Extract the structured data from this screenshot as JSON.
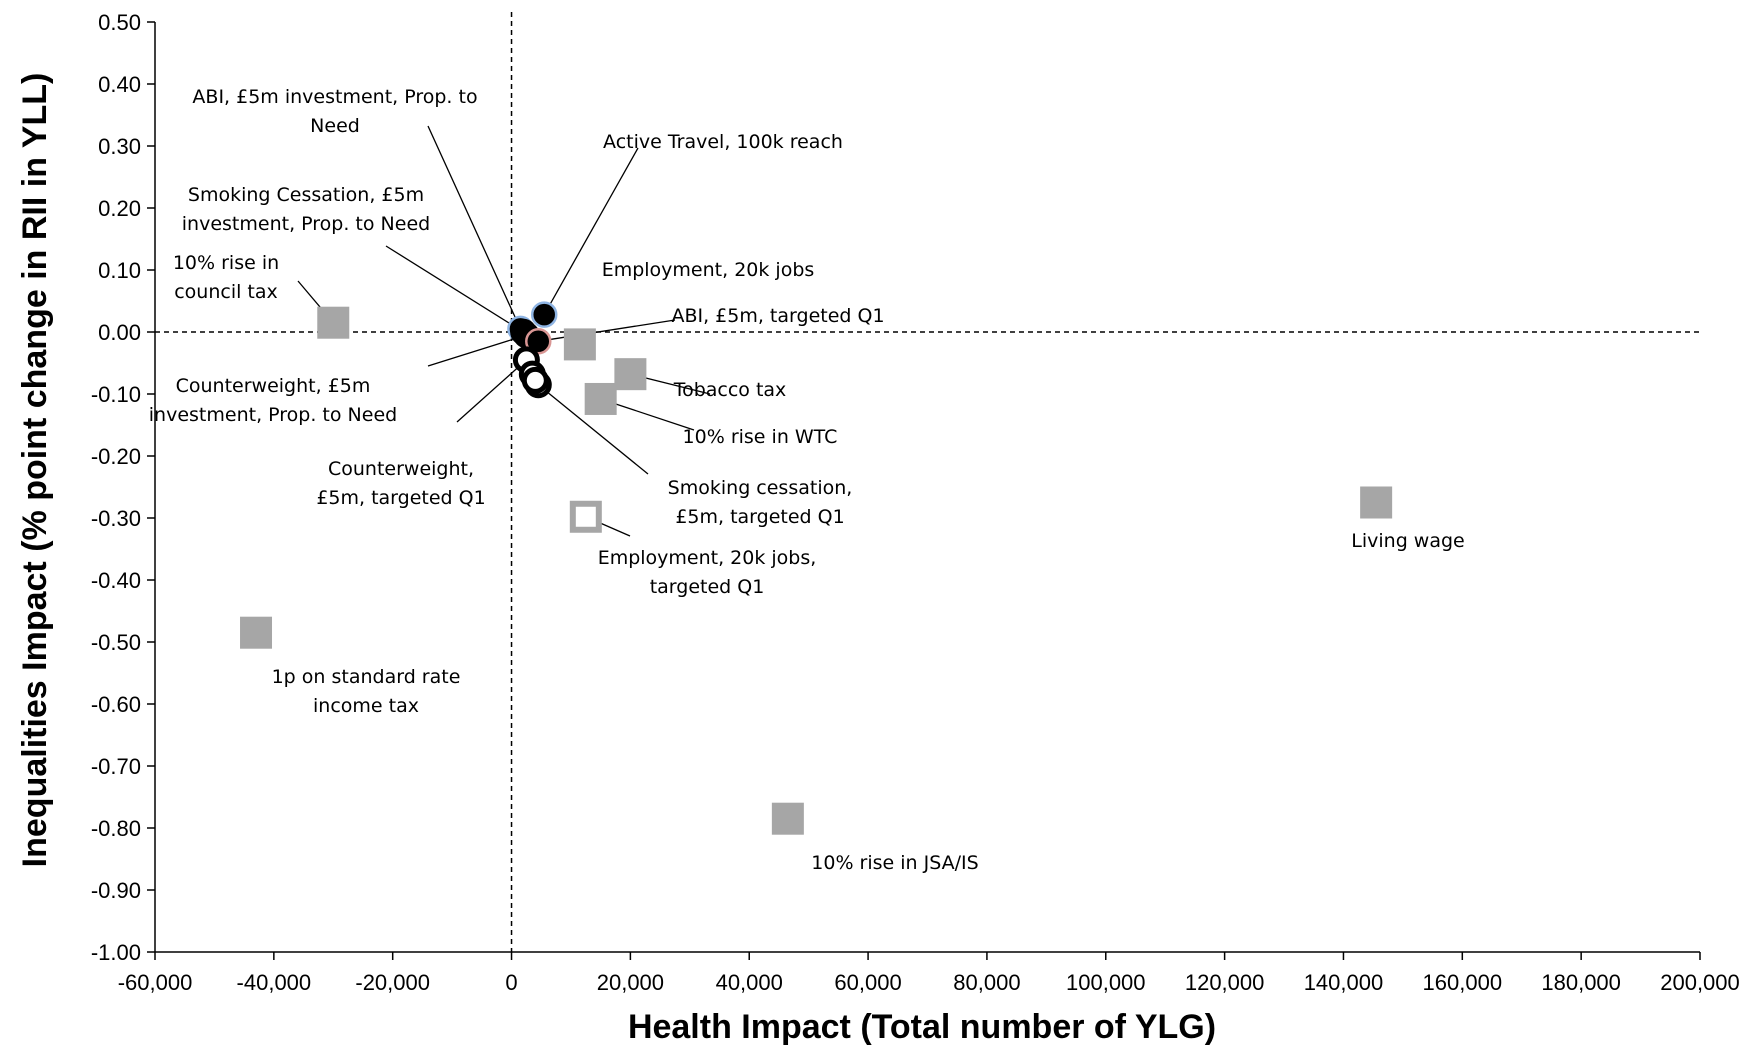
{
  "chart_data": {
    "type": "scatter",
    "title": "",
    "xlabel": "Health Impact (Total number of YLG)",
    "ylabel": "Inequalities Impact (% point change in RII in YLL)",
    "xlim": [
      -60000,
      200000
    ],
    "ylim": [
      -1.0,
      0.5
    ],
    "x_ticks": [
      -60000,
      -40000,
      -20000,
      0,
      20000,
      40000,
      60000,
      80000,
      100000,
      120000,
      140000,
      160000,
      180000,
      200000
    ],
    "x_tick_labels": [
      "-60,000",
      "-40,000",
      "-20,000",
      "0",
      "20,000",
      "40,000",
      "60,000",
      "80,000",
      "100,000",
      "120,000",
      "140,000",
      "160,000",
      "180,000",
      "200,000"
    ],
    "y_ticks": [
      0.5,
      0.4,
      0.3,
      0.2,
      0.1,
      0.0,
      -0.1,
      -0.2,
      -0.3,
      -0.4,
      -0.5,
      -0.6,
      -0.7,
      -0.8,
      -0.9,
      -1.0
    ],
    "y_tick_labels": [
      "0.50",
      "0.40",
      "0.30",
      "0.20",
      "0.10",
      "0.00",
      "-0.10",
      "-0.20",
      "-0.30",
      "-0.40",
      "-0.50",
      "-0.60",
      "-0.70",
      "-0.80",
      "-0.90",
      "-1.00"
    ],
    "reference_lines": [
      "x = 0 (dashed)",
      "y = 0 (dashed)"
    ],
    "grid": false,
    "legend": "none",
    "marker_colors": {
      "square_fill": "#a6a6a6",
      "square_outline": "#a6a6a6",
      "circle_dark": "#000000",
      "circle_edge_blue": "#8eb4e3",
      "circle_edge_red": "#d99694"
    },
    "points": [
      {
        "label": [
          "10% rise in",
          "council tax"
        ],
        "x": -30000,
        "y": 0.015,
        "marker": "square-filled"
      },
      {
        "label": [
          "1p on standard rate",
          "income tax"
        ],
        "x": -43000,
        "y": -0.485,
        "marker": "square-filled"
      },
      {
        "label": [
          "Living wage"
        ],
        "x": 145500,
        "y": -0.275,
        "marker": "square-filled"
      },
      {
        "label": [
          "10% rise in JSA/IS"
        ],
        "x": 46500,
        "y": -0.785,
        "marker": "square-filled"
      },
      {
        "label": [
          "Tobacco tax"
        ],
        "x": 20000,
        "y": -0.068,
        "marker": "square-filled"
      },
      {
        "label": [
          "10% rise in WTC"
        ],
        "x": 15000,
        "y": -0.108,
        "marker": "square-filled"
      },
      {
        "label": [
          "Employment, 20k jobs"
        ],
        "x": 11500,
        "y": -0.02,
        "marker": "square-filled"
      },
      {
        "label": [
          "Employment, 20k jobs,",
          "targeted Q1"
        ],
        "x": 12500,
        "y": -0.298,
        "marker": "square-open"
      },
      {
        "label": [
          "Active Travel, 100k reach"
        ],
        "x": 5500,
        "y": 0.028,
        "marker": "circle-filled-blue-edge"
      },
      {
        "label": [
          "ABI, £5m investment, Prop. to",
          "Need"
        ],
        "x": 1500,
        "y": 0.005,
        "marker": "circle-filled-blue-edge"
      },
      {
        "label": [
          "Smoking Cessation, £5m",
          "investment, Prop. to Need"
        ],
        "x": 2000,
        "y": 0.0,
        "marker": "circle-filled"
      },
      {
        "label": [
          "Counterweight, £5m",
          "investment, Prop. to Need"
        ],
        "x": 2500,
        "y": -0.005,
        "marker": "circle-filled"
      },
      {
        "label": [
          "ABI, £5m, targeted Q1"
        ],
        "x": 4500,
        "y": -0.015,
        "marker": "circle-filled-red-edge"
      },
      {
        "label": [
          "Counterweight,",
          "£5m, targeted Q1"
        ],
        "x": 2500,
        "y": -0.045,
        "marker": "circle-open"
      },
      {
        "label": [
          "Smoking cessation,",
          "£5m, targeted Q1"
        ],
        "x": 4500,
        "y": -0.085,
        "marker": "circle-open"
      }
    ],
    "extra_open_circles": [
      {
        "x": 3500,
        "y": -0.068
      },
      {
        "x": 4000,
        "y": -0.078
      }
    ]
  }
}
